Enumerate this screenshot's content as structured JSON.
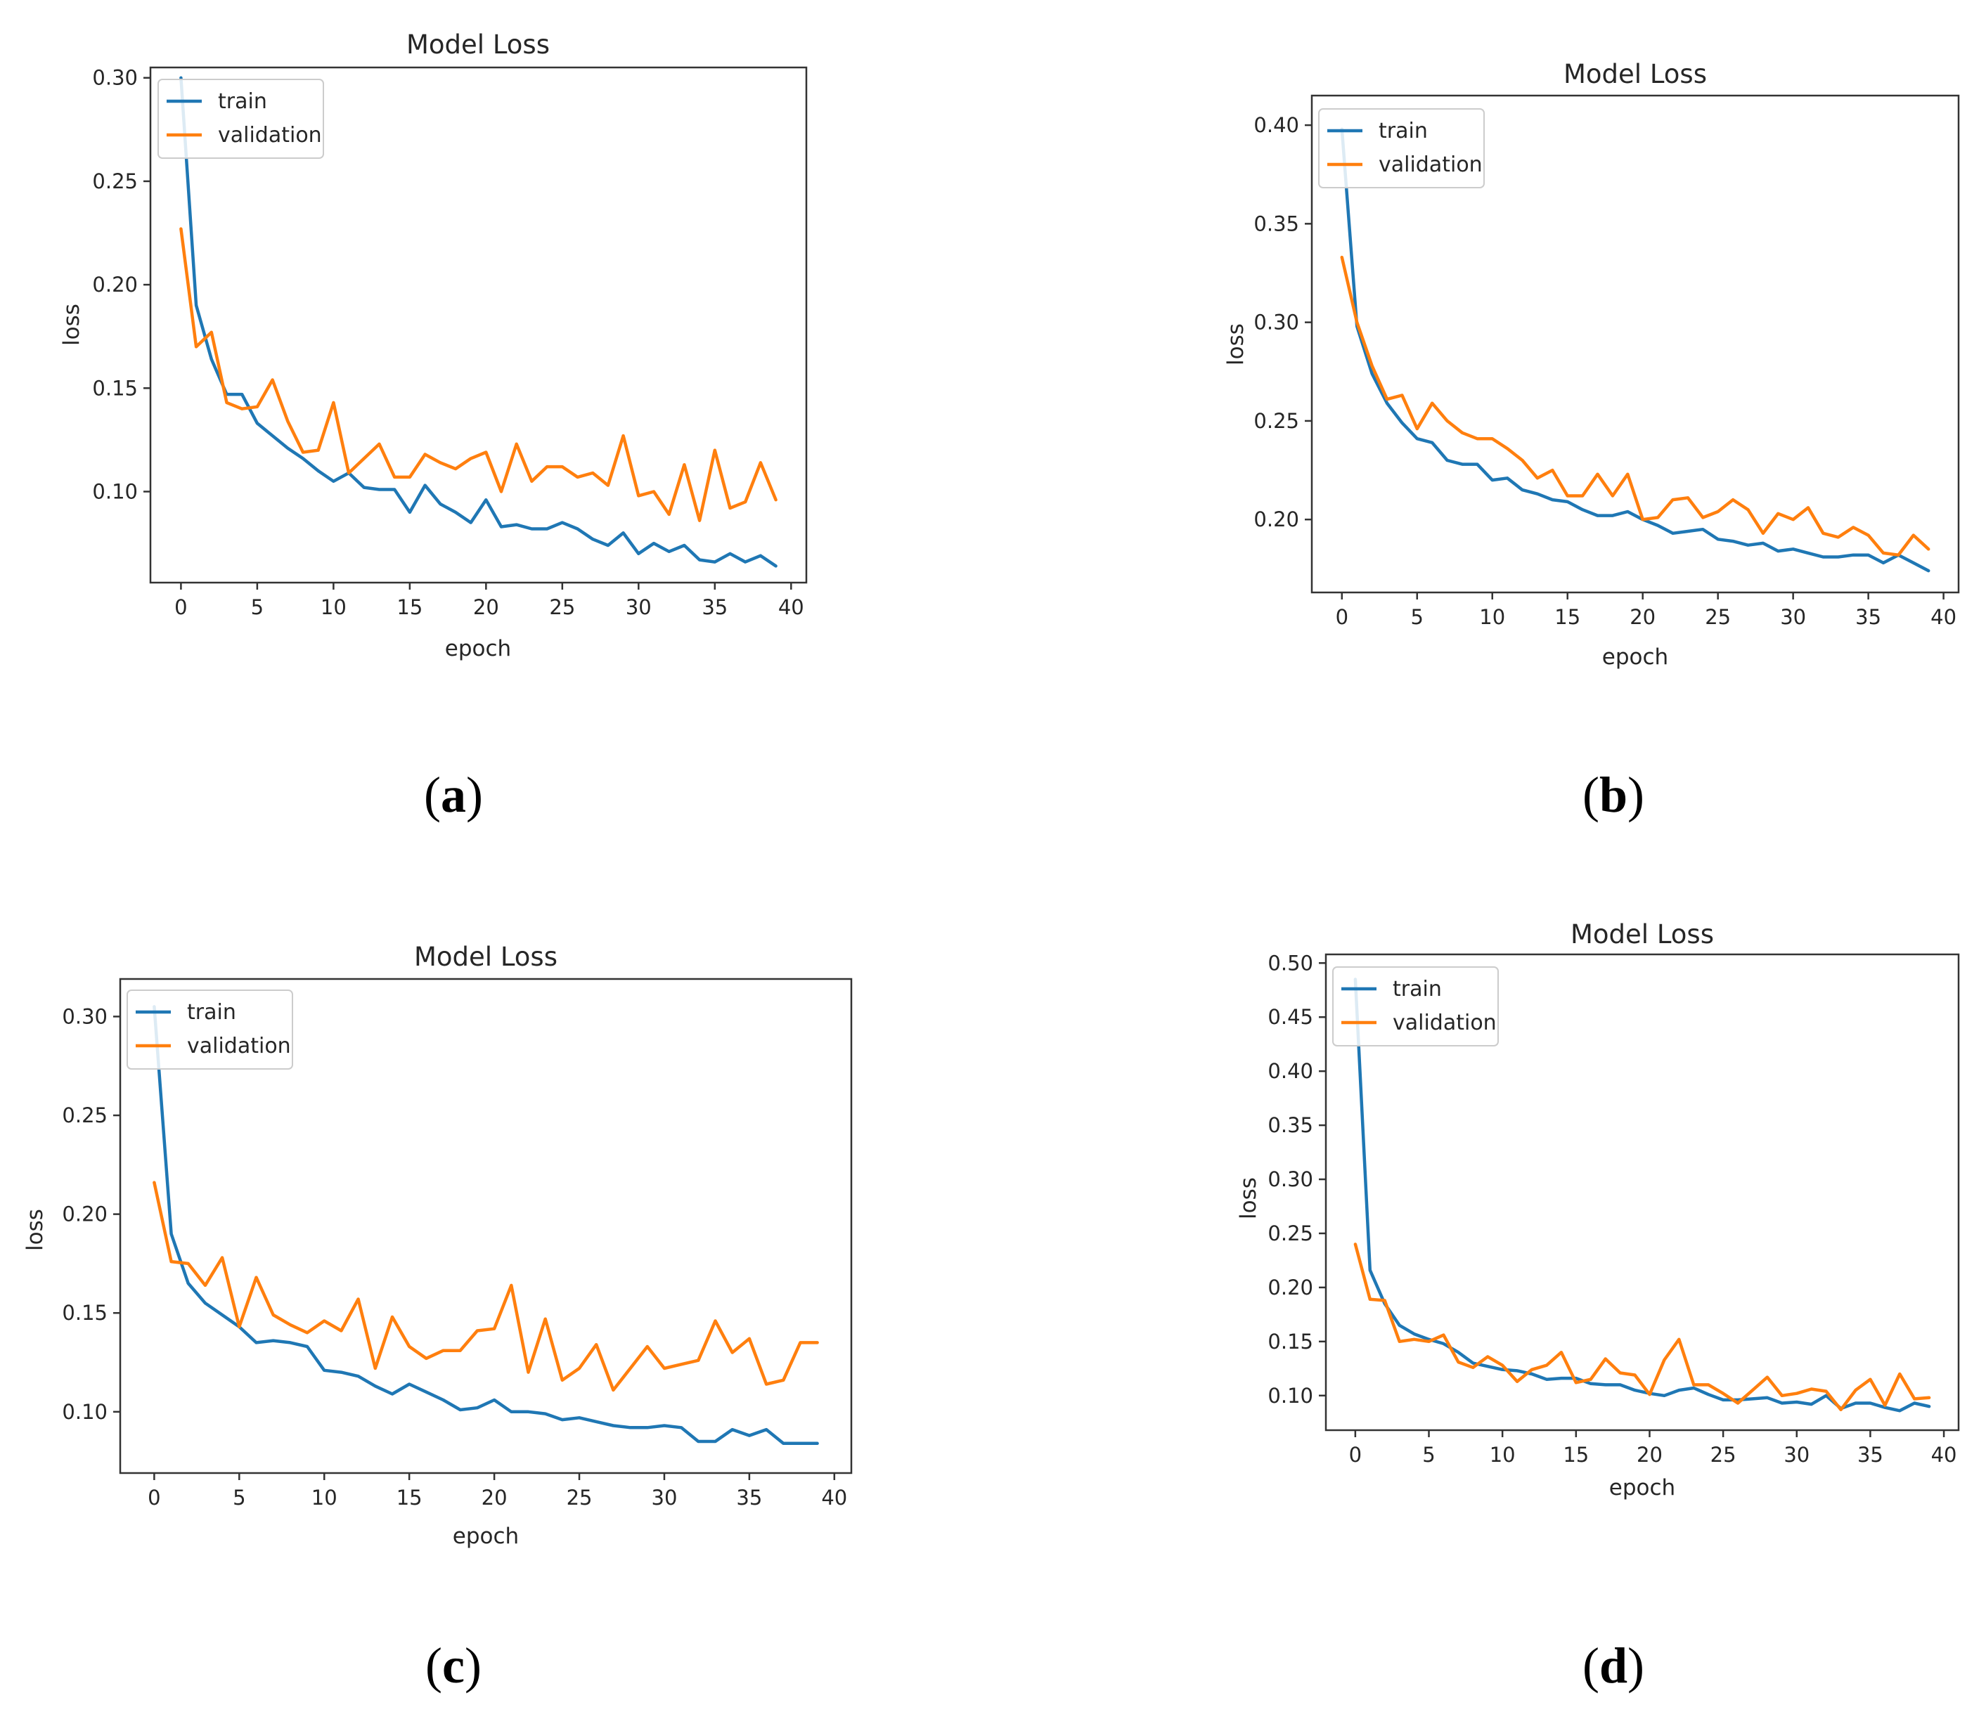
{
  "chart_data": [
    {
      "panel_label": "a",
      "type": "line",
      "title": "Model Loss",
      "xlabel": "epoch",
      "ylabel": "loss",
      "xlim": [
        -2,
        41
      ],
      "ylim": [
        0.056,
        0.305
      ],
      "xticks": [
        0,
        5,
        10,
        15,
        20,
        25,
        30,
        35,
        40
      ],
      "xtick_labels": [
        "0",
        "5",
        "10",
        "15",
        "20",
        "25",
        "30",
        "35",
        "40"
      ],
      "yticks": [
        0.1,
        0.15,
        0.2,
        0.25,
        0.3
      ],
      "ytick_labels": [
        "0.10",
        "0.15",
        "0.20",
        "0.25",
        "0.30"
      ],
      "legend_position": "upper-left",
      "series": [
        {
          "name": "train",
          "color": "#1f77b4",
          "values": [
            0.3,
            0.19,
            0.164,
            0.147,
            0.147,
            0.133,
            0.127,
            0.121,
            0.116,
            0.11,
            0.105,
            0.109,
            0.102,
            0.101,
            0.101,
            0.09,
            0.103,
            0.094,
            0.09,
            0.085,
            0.096,
            0.083,
            0.084,
            0.082,
            0.082,
            0.085,
            0.082,
            0.077,
            0.074,
            0.08,
            0.07,
            0.075,
            0.071,
            0.074,
            0.067,
            0.066,
            0.07,
            0.066,
            0.069,
            0.064
          ]
        },
        {
          "name": "validation",
          "color": "#ff7f0e",
          "values": [
            0.227,
            0.17,
            0.177,
            0.143,
            0.14,
            0.141,
            0.154,
            0.134,
            0.119,
            0.12,
            0.143,
            0.109,
            0.116,
            0.123,
            0.107,
            0.107,
            0.118,
            0.114,
            0.111,
            0.116,
            0.119,
            0.1,
            0.123,
            0.105,
            0.112,
            0.112,
            0.107,
            0.109,
            0.103,
            0.127,
            0.098,
            0.1,
            0.089,
            0.113,
            0.086,
            0.12,
            0.092,
            0.095,
            0.114,
            0.096
          ]
        }
      ]
    },
    {
      "panel_label": "b",
      "type": "line",
      "title": "Model Loss",
      "xlabel": "epoch",
      "ylabel": "loss",
      "xlim": [
        -2,
        41
      ],
      "ylim": [
        0.163,
        0.415
      ],
      "xticks": [
        0,
        5,
        10,
        15,
        20,
        25,
        30,
        35,
        40
      ],
      "xtick_labels": [
        "0",
        "5",
        "10",
        "15",
        "20",
        "25",
        "30",
        "35",
        "40"
      ],
      "yticks": [
        0.2,
        0.25,
        0.3,
        0.35,
        0.4
      ],
      "ytick_labels": [
        "0.20",
        "0.25",
        "0.30",
        "0.35",
        "0.40"
      ],
      "legend_position": "upper-left",
      "series": [
        {
          "name": "train",
          "color": "#1f77b4",
          "values": [
            0.398,
            0.298,
            0.274,
            0.259,
            0.249,
            0.241,
            0.239,
            0.23,
            0.228,
            0.228,
            0.22,
            0.221,
            0.215,
            0.213,
            0.21,
            0.209,
            0.205,
            0.202,
            0.202,
            0.204,
            0.2,
            0.197,
            0.193,
            0.194,
            0.195,
            0.19,
            0.189,
            0.187,
            0.188,
            0.184,
            0.185,
            0.183,
            0.181,
            0.181,
            0.182,
            0.182,
            0.178,
            0.182,
            0.178,
            0.174
          ]
        },
        {
          "name": "validation",
          "color": "#ff7f0e",
          "values": [
            0.333,
            0.3,
            0.278,
            0.261,
            0.263,
            0.246,
            0.259,
            0.25,
            0.244,
            0.241,
            0.241,
            0.236,
            0.23,
            0.221,
            0.225,
            0.212,
            0.212,
            0.223,
            0.212,
            0.223,
            0.2,
            0.201,
            0.21,
            0.211,
            0.201,
            0.204,
            0.21,
            0.205,
            0.193,
            0.203,
            0.2,
            0.206,
            0.193,
            0.191,
            0.196,
            0.192,
            0.183,
            0.182,
            0.192,
            0.185
          ]
        }
      ]
    },
    {
      "panel_label": "c",
      "type": "line",
      "title": "Model Loss",
      "xlabel": "epoch",
      "ylabel": "loss",
      "xlim": [
        -2,
        41
      ],
      "ylim": [
        0.069,
        0.319
      ],
      "xticks": [
        0,
        5,
        10,
        15,
        20,
        25,
        30,
        35,
        40
      ],
      "xtick_labels": [
        "0",
        "5",
        "10",
        "15",
        "20",
        "25",
        "30",
        "35",
        "40"
      ],
      "yticks": [
        0.1,
        0.15,
        0.2,
        0.25,
        0.3
      ],
      "ytick_labels": [
        "0.10",
        "0.15",
        "0.20",
        "0.25",
        "0.30"
      ],
      "legend_position": "upper-left",
      "series": [
        {
          "name": "train",
          "color": "#1f77b4",
          "values": [
            0.305,
            0.19,
            0.165,
            0.155,
            0.149,
            0.143,
            0.135,
            0.136,
            0.135,
            0.133,
            0.121,
            0.12,
            0.118,
            0.113,
            0.109,
            0.114,
            0.11,
            0.106,
            0.101,
            0.102,
            0.106,
            0.1,
            0.1,
            0.099,
            0.096,
            0.097,
            0.095,
            0.093,
            0.092,
            0.092,
            0.093,
            0.092,
            0.085,
            0.085,
            0.091,
            0.088,
            0.091,
            0.084,
            0.084,
            0.084
          ]
        },
        {
          "name": "validation",
          "color": "#ff7f0e",
          "values": [
            0.216,
            0.176,
            0.175,
            0.164,
            0.178,
            0.143,
            0.168,
            0.149,
            0.144,
            0.14,
            0.146,
            0.141,
            0.157,
            0.122,
            0.148,
            0.133,
            0.127,
            0.131,
            0.131,
            0.141,
            0.142,
            0.164,
            0.12,
            0.147,
            0.116,
            0.122,
            0.134,
            0.111,
            0.122,
            0.133,
            0.122,
            0.124,
            0.126,
            0.146,
            0.13,
            0.137,
            0.114,
            0.116,
            0.135,
            0.135
          ]
        }
      ]
    },
    {
      "panel_label": "d",
      "type": "line",
      "title": "Model Loss",
      "xlabel": "epoch",
      "ylabel": "loss",
      "xlim": [
        -2,
        41
      ],
      "ylim": [
        0.068,
        0.508
      ],
      "xticks": [
        0,
        5,
        10,
        15,
        20,
        25,
        30,
        35,
        40
      ],
      "xtick_labels": [
        "0",
        "5",
        "10",
        "15",
        "20",
        "25",
        "30",
        "35",
        "40"
      ],
      "yticks": [
        0.1,
        0.15,
        0.2,
        0.25,
        0.3,
        0.35,
        0.4,
        0.45,
        0.5
      ],
      "ytick_labels": [
        "0.10",
        "0.15",
        "0.20",
        "0.25",
        "0.30",
        "0.35",
        "0.40",
        "0.45",
        "0.50"
      ],
      "legend_position": "upper-left",
      "series": [
        {
          "name": "train",
          "color": "#1f77b4",
          "values": [
            0.485,
            0.216,
            0.185,
            0.165,
            0.157,
            0.152,
            0.148,
            0.14,
            0.13,
            0.127,
            0.124,
            0.123,
            0.12,
            0.115,
            0.116,
            0.116,
            0.111,
            0.11,
            0.11,
            0.105,
            0.102,
            0.1,
            0.105,
            0.107,
            0.101,
            0.096,
            0.096,
            0.097,
            0.098,
            0.093,
            0.094,
            0.092,
            0.1,
            0.088,
            0.093,
            0.093,
            0.089,
            0.086,
            0.093,
            0.09
          ]
        },
        {
          "name": "validation",
          "color": "#ff7f0e",
          "values": [
            0.24,
            0.189,
            0.188,
            0.15,
            0.152,
            0.15,
            0.156,
            0.131,
            0.126,
            0.136,
            0.128,
            0.113,
            0.124,
            0.128,
            0.14,
            0.112,
            0.115,
            0.134,
            0.121,
            0.119,
            0.101,
            0.133,
            0.152,
            0.11,
            0.11,
            0.102,
            0.093,
            0.105,
            0.117,
            0.1,
            0.102,
            0.106,
            0.104,
            0.087,
            0.105,
            0.115,
            0.091,
            0.12,
            0.097,
            0.098
          ]
        }
      ]
    }
  ]
}
